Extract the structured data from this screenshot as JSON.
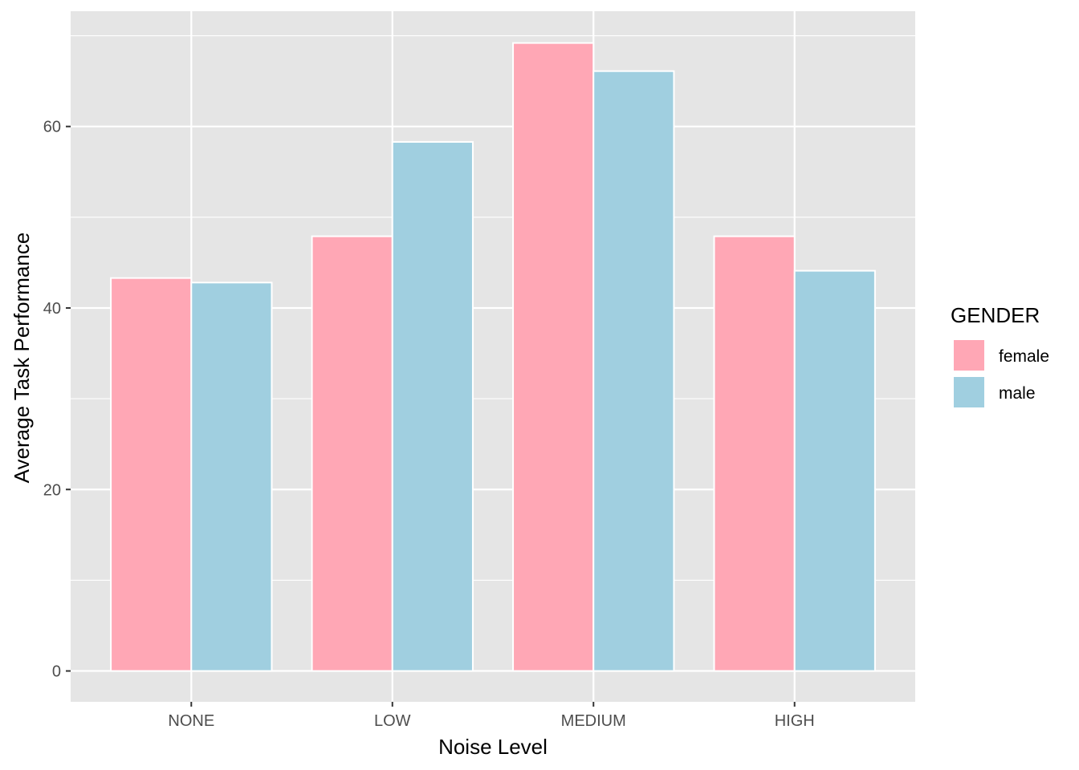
{
  "chart_data": {
    "type": "bar",
    "title": "",
    "xlabel": "Noise Level",
    "ylabel": "Average Task Performance",
    "categories": [
      "NONE",
      "LOW",
      "MEDIUM",
      "HIGH"
    ],
    "series": [
      {
        "name": "female",
        "color": "#FFA7B5",
        "values": [
          43.3,
          47.9,
          69.2,
          47.9
        ]
      },
      {
        "name": "male",
        "color": "#A0CFE0",
        "values": [
          42.8,
          58.3,
          66.1,
          44.1
        ]
      }
    ],
    "ylim": [
      -3.4,
      72.7
    ],
    "yticks": [
      0,
      20,
      40,
      60
    ],
    "ytick_labels": [
      "0",
      "20",
      "40",
      "60"
    ],
    "grid": true,
    "panel_background": "#E5E5E5",
    "legend": {
      "title": "GENDER",
      "position": "right"
    }
  }
}
